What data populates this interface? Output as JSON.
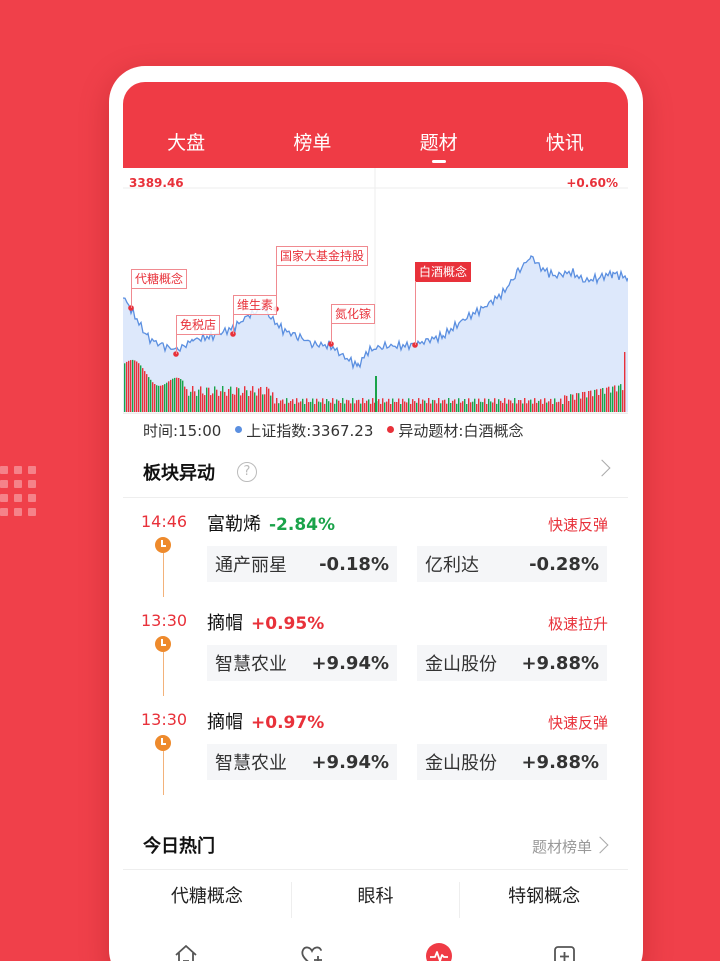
{
  "tabs": [
    {
      "label": "大盘"
    },
    {
      "label": "榜单"
    },
    {
      "label": "题材"
    },
    {
      "label": "快讯"
    }
  ],
  "active_tab": "题材",
  "chart": {
    "top_left": "3389.46",
    "top_right": "+0.60%",
    "annotations": [
      "代糖概念",
      "免税店",
      "维生素",
      "国家大基金持股",
      "氮化镓",
      "白酒概念"
    ],
    "legend": {
      "time": "时间:15:00",
      "index": "上证指数:3367.23",
      "theme": "异动题材:白酒概念"
    },
    "colors": {
      "line": "#5b8fe0",
      "area": "#dde8fb",
      "up": "#e8313a",
      "down": "#1aa34a"
    }
  },
  "section_title": "板块异动",
  "events": [
    {
      "time": "14:46",
      "name": "富勒烯",
      "change": "-2.84%",
      "direction": "down",
      "type": "快速反弹",
      "stocks": [
        {
          "name": "通产丽星",
          "value": "-0.18%"
        },
        {
          "name": "亿利达",
          "value": "-0.28%"
        }
      ]
    },
    {
      "time": "13:30",
      "name": "摘帽",
      "change": "+0.95%",
      "direction": "up",
      "type": "极速拉升",
      "stocks": [
        {
          "name": "智慧农业",
          "value": "+9.94%"
        },
        {
          "name": "金山股份",
          "value": "+9.88%"
        }
      ]
    },
    {
      "time": "13:30",
      "name": "摘帽",
      "change": "+0.97%",
      "direction": "up",
      "type": "快速反弹",
      "stocks": [
        {
          "name": "智慧农业",
          "value": "+9.94%"
        },
        {
          "name": "金山股份",
          "value": "+9.88%"
        }
      ]
    }
  ],
  "hot": {
    "title": "今日热门",
    "more": "题材榜单",
    "items": [
      "代糖概念",
      "眼科",
      "特钢概念"
    ]
  },
  "nav_icons": [
    "home-icon",
    "favorite-add-icon",
    "market-pulse-icon",
    "add-box-icon"
  ]
}
